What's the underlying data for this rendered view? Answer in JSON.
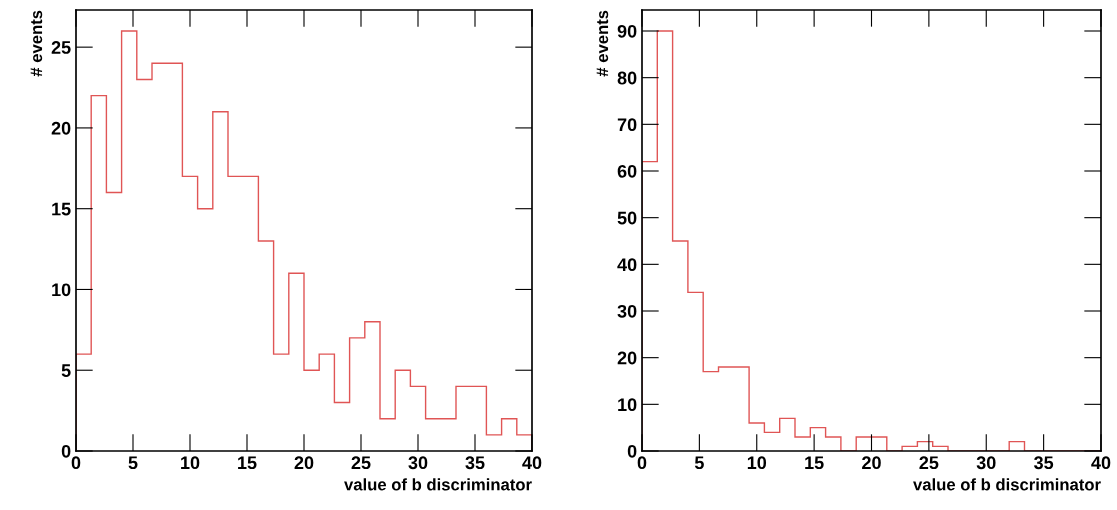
{
  "chart_data": [
    {
      "type": "histogram",
      "xlabel": "value of b discriminator",
      "ylabel": "# events",
      "color": "#e05555",
      "bins": [
        0,
        1.333,
        2.667,
        4,
        5.333,
        6.667,
        8,
        9.333,
        10.667,
        12,
        13.333,
        14.667,
        16,
        17.333,
        18.667,
        20,
        21.333,
        22.667,
        24,
        25.333,
        26.667,
        28,
        29.333,
        30.667,
        32,
        33.333,
        34.667,
        36,
        37.333,
        38.667,
        40
      ],
      "values": [
        6,
        22,
        16,
        26,
        23,
        24,
        24,
        17,
        15,
        21,
        17,
        17,
        13,
        6,
        11,
        5,
        6,
        3,
        7,
        8,
        2,
        5,
        4,
        2,
        2,
        4,
        4,
        1,
        2,
        1
      ],
      "xlim": [
        0,
        40
      ],
      "xticks": [
        0,
        5,
        10,
        15,
        20,
        25,
        30,
        35,
        40
      ],
      "ylim": [
        0,
        27.3
      ],
      "yticks": [
        0,
        5,
        10,
        15,
        20,
        25
      ],
      "grid": false
    },
    {
      "type": "histogram",
      "xlabel": "value of b discriminator",
      "ylabel": "# events",
      "color": "#e05555",
      "bins": [
        0,
        1.333,
        2.667,
        4,
        5.333,
        6.667,
        8,
        9.333,
        10.667,
        12,
        13.333,
        14.667,
        16,
        17.333,
        18.667,
        20,
        21.333,
        22.667,
        24,
        25.333,
        26.667,
        28,
        29.333,
        30.667,
        32,
        33.333,
        34.667,
        36,
        37.333,
        38.667,
        40
      ],
      "values": [
        62,
        90,
        45,
        34,
        17,
        18,
        18,
        6,
        4,
        7,
        3,
        5,
        3,
        0,
        3,
        3,
        0,
        1,
        2,
        1,
        0,
        0,
        0,
        0,
        2,
        0,
        0,
        0,
        0,
        0
      ],
      "xlim": [
        0,
        40
      ],
      "xticks": [
        0,
        5,
        10,
        15,
        20,
        25,
        30,
        35,
        40
      ],
      "ylim": [
        0,
        94.5
      ],
      "yticks": [
        0,
        10,
        20,
        30,
        40,
        50,
        60,
        70,
        80,
        90
      ],
      "grid": false
    }
  ]
}
